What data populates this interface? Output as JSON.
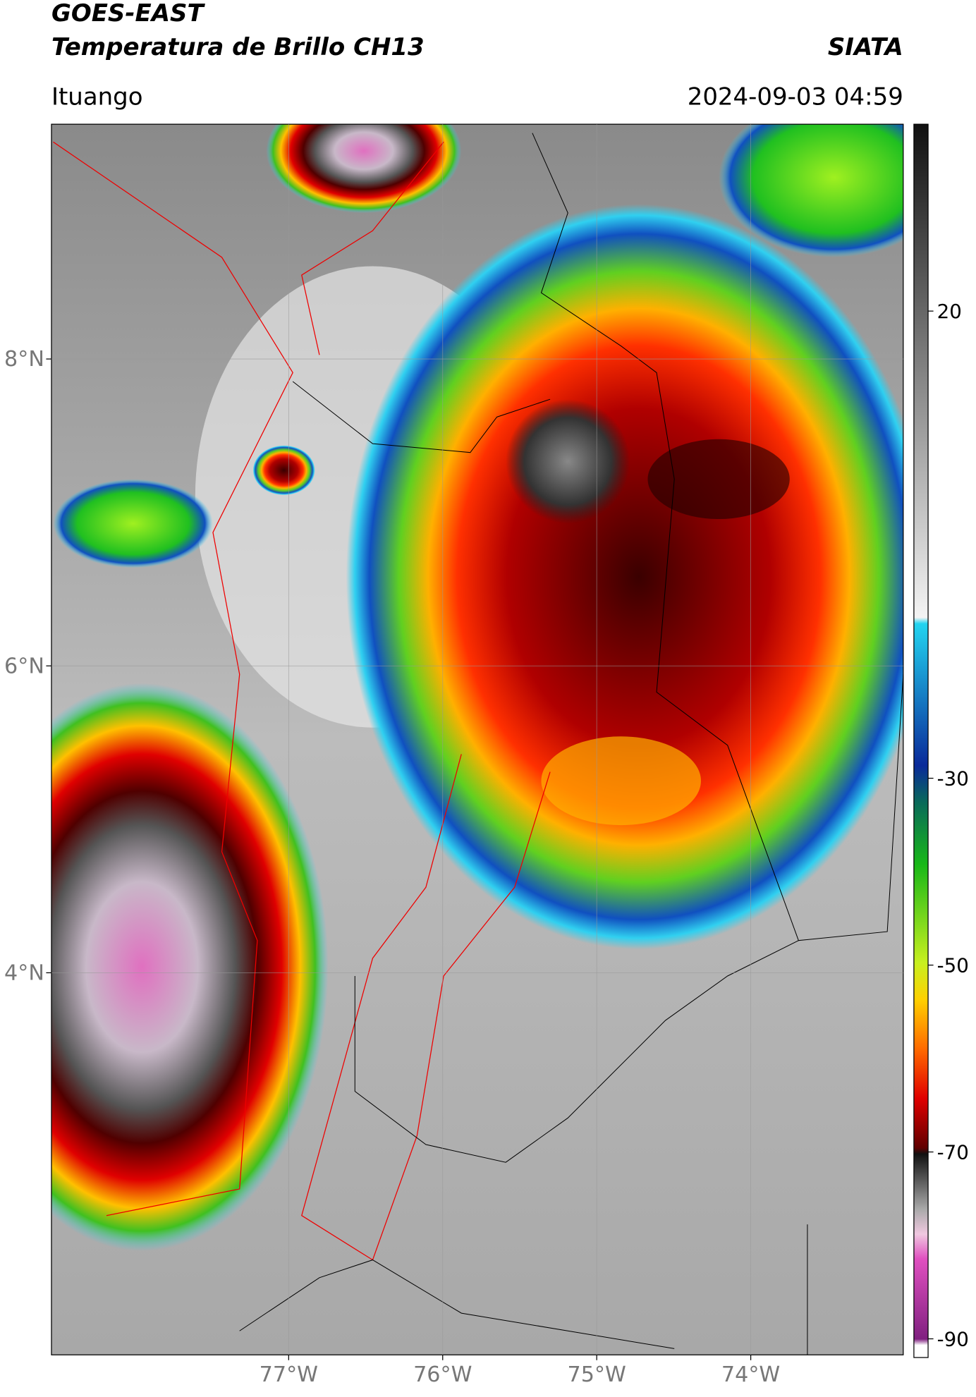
{
  "header": {
    "title": "GOES-EAST",
    "subtitle": "Temperatura de Brillo CH13",
    "source": "SIATA",
    "location": "Ituango",
    "datetime": "2024-09-03 04:59"
  },
  "map": {
    "lonlim": [
      -78.54,
      -73.01
    ],
    "latlim": [
      1.51,
      9.53
    ],
    "lon_ticks": [
      {
        "value": -77,
        "label": "77°W"
      },
      {
        "value": -76,
        "label": "76°W"
      },
      {
        "value": -75,
        "label": "75°W"
      },
      {
        "value": -74,
        "label": "74°W"
      }
    ],
    "lat_ticks": [
      {
        "value": 8,
        "label": "8°N"
      },
      {
        "value": 6,
        "label": "6°N"
      },
      {
        "value": 4,
        "label": "4°N"
      }
    ],
    "grid": true
  },
  "colorbar": {
    "lim": [
      -92,
      40
    ],
    "ticks": [
      20,
      -30,
      -50,
      -70,
      -90
    ]
  }
}
